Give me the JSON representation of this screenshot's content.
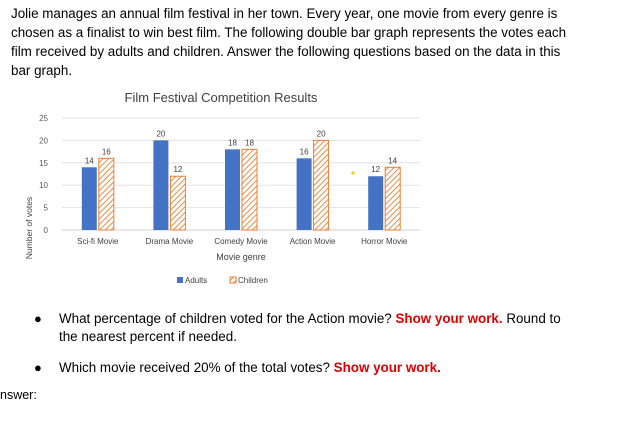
{
  "intro": "Jolie manages an annual film festival in her town. Every year, one movie from every genre is chosen as a finalist to win best film. The following double bar graph represents the votes each film received by adults and children. Answer the following questions based on the data in this bar graph.",
  "chart_data": {
    "type": "bar",
    "title": "Film Festival Competition Results",
    "xlabel": "Movie genre",
    "ylabel": "Number of votes",
    "ylim": [
      0,
      25
    ],
    "yticks": [
      0,
      5,
      10,
      15,
      20,
      25
    ],
    "grid": true,
    "legend_position": "bottom",
    "categories": [
      "Sci-fi Movie",
      "Drama Movie",
      "Comedy Movie",
      "Action Movie",
      "Horror Movie"
    ],
    "series": [
      {
        "name": "Adults",
        "values": [
          14,
          20,
          18,
          16,
          12
        ],
        "color": "#4472c4",
        "pattern": "solid"
      },
      {
        "name": "Children",
        "values": [
          16,
          12,
          18,
          20,
          14
        ],
        "color": "#ed7d31",
        "pattern": "hatched"
      }
    ]
  },
  "questions": [
    {
      "text": "What percentage of children voted for the Action movie? ",
      "emphasis": "Show your work.",
      "after": " Round to the nearest percent if needed."
    },
    {
      "text": "Which movie received 20% of the total votes? ",
      "emphasis": "Show your work.",
      "after": ""
    }
  ],
  "answer_label": "nswer:"
}
